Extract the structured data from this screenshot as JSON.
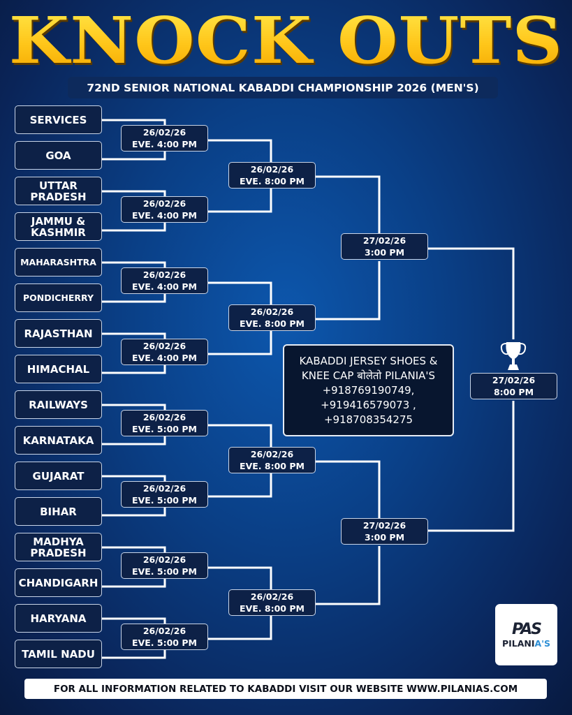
{
  "header": {
    "title": "KNOCK OUTS",
    "subtitle": "72ND SENIOR NATIONAL KABADDI CHAMPIONSHIP 2026 (MEN'S)"
  },
  "teams": [
    [
      "SERVICES"
    ],
    [
      "GOA"
    ],
    [
      "UTTAR",
      "PRADESH"
    ],
    [
      "JAMMU &",
      "KASHMIR"
    ],
    [
      "MAHARASHTRA"
    ],
    [
      "PONDICHERRY"
    ],
    [
      "RAJASTHAN"
    ],
    [
      "HIMACHAL"
    ],
    [
      "RAILWAYS"
    ],
    [
      "KARNATAKA"
    ],
    [
      "GUJARAT"
    ],
    [
      "BIHAR"
    ],
    [
      "MADHYA",
      "PRADESH"
    ],
    [
      "CHANDIGARH"
    ],
    [
      "HARYANA"
    ],
    [
      "TAMIL NADU"
    ]
  ],
  "round1": [
    [
      "26/02/26",
      "EVE. 4:00 PM"
    ],
    [
      "26/02/26",
      "EVE. 4:00 PM"
    ],
    [
      "26/02/26",
      "EVE. 4:00 PM"
    ],
    [
      "26/02/26",
      "EVE. 4:00 PM"
    ],
    [
      "26/02/26",
      "EVE. 5:00 PM"
    ],
    [
      "26/02/26",
      "EVE. 5:00 PM"
    ],
    [
      "26/02/26",
      "EVE. 5:00 PM"
    ],
    [
      "26/02/26",
      "EVE. 5:00 PM"
    ]
  ],
  "round2": [
    [
      "26/02/26",
      "EVE. 8:00 PM"
    ],
    [
      "26/02/26",
      "EVE. 8:00 PM"
    ],
    [
      "26/02/26",
      "EVE. 8:00 PM"
    ],
    [
      "26/02/26",
      "EVE. 8:00 PM"
    ]
  ],
  "round3": [
    [
      "27/02/26",
      "3:00 PM"
    ],
    [
      "27/02/26",
      "3:00 PM"
    ]
  ],
  "final": [
    "27/02/26",
    "8:00 PM"
  ],
  "icons": {
    "trophy": "trophy-icon"
  },
  "colors": {
    "title": "#ffc61a",
    "background": "#0a3f86",
    "box": "#0d2147",
    "lines": "#ffffff"
  },
  "ad": {
    "lines": [
      "KABADDI JERSEY SHOES &",
      "KNEE CAP बोलेतो PILANIA'S",
      "+918769190749,",
      "+919416579073 ,",
      "+918708354275"
    ]
  },
  "logo": {
    "mark": "PAS",
    "name": "PILANIA'S"
  },
  "footer": {
    "text": "FOR ALL INFORMATION RELATED TO KABADDI VISIT OUR WEBSITE WWW.PILANIAS.COM"
  }
}
